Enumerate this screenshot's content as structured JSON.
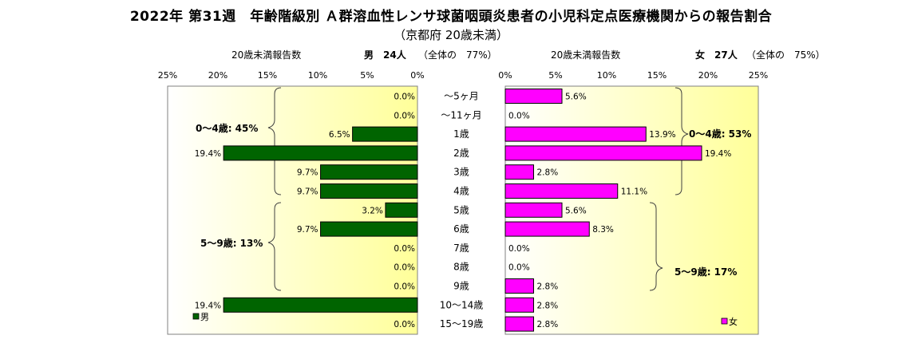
{
  "chart": {
    "title": "2022年 第31週　年齢階級別 Ａ群溶血性レンサ球菌咽頭炎患者の小児科定点医療機関からの報告割合",
    "subtitle": "（京都府 20歳未満）",
    "male_header": {
      "label": "20歳未満報告数",
      "sex_count": "男　24人",
      "share": "（全体の　77%）"
    },
    "female_header": {
      "label": "20歳未満報告数",
      "sex_count": "女　27人",
      "share": "（全体の　75%）"
    },
    "male_ticks": [
      "25%",
      "20%",
      "15%",
      "10%",
      "5%",
      "0%"
    ],
    "female_ticks": [
      "0%",
      "5%",
      "10%",
      "15%",
      "20%",
      "25%"
    ],
    "male_groups": [
      {
        "label": "0～4歳: 45%"
      },
      {
        "label": "5～9歳: 13%"
      }
    ],
    "female_groups": [
      {
        "label": "0～4歳: 53%"
      },
      {
        "label": "5～9歳: 17%"
      }
    ],
    "colors": {
      "male": "#006400",
      "female": "#ff00ff",
      "plot_bg_from": "#ffff99",
      "plot_bg_to": "#ffffff"
    }
  },
  "chart_data": {
    "type": "bar",
    "orientation": "horizontal",
    "categories": [
      "～5ヶ月",
      "～11ヶ月",
      "1歳",
      "2歳",
      "3歳",
      "4歳",
      "5歳",
      "6歳",
      "7歳",
      "8歳",
      "9歳",
      "10～14歳",
      "15～19歳"
    ],
    "xlim": [
      0,
      25
    ],
    "series": [
      {
        "name": "男",
        "values": [
          0.0,
          0.0,
          6.5,
          19.4,
          9.7,
          9.7,
          3.2,
          9.7,
          0.0,
          0.0,
          0.0,
          19.4,
          0.0
        ],
        "labels": [
          "0.0%",
          "0.0%",
          "6.5%",
          "19.4%",
          "9.7%",
          "9.7%",
          "3.2%",
          "9.7%",
          "0.0%",
          "0.0%",
          "0.0%",
          "19.4%",
          "0.0%"
        ]
      },
      {
        "name": "女",
        "values": [
          5.6,
          0.0,
          13.9,
          19.4,
          2.8,
          11.1,
          5.6,
          8.3,
          0.0,
          0.0,
          2.8,
          2.8,
          2.8
        ],
        "labels": [
          "5.6%",
          "0.0%",
          "13.9%",
          "19.4%",
          "2.8%",
          "11.1%",
          "5.6%",
          "8.3%",
          "0.0%",
          "0.0%",
          "2.8%",
          "2.8%",
          "2.8%"
        ]
      }
    ],
    "grid": false,
    "legend": "bottom-corner"
  }
}
